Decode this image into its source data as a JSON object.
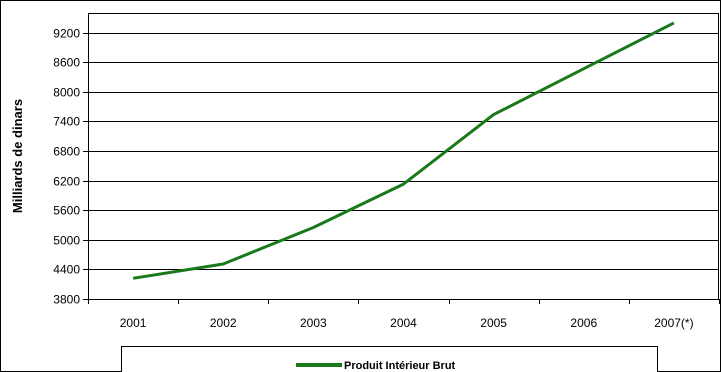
{
  "chart_data": {
    "type": "line",
    "ylabel": "Milliards de dinars",
    "categories": [
      "2001",
      "2002",
      "2003",
      "2004",
      "2005",
      "2006",
      "2007(*)"
    ],
    "series": [
      {
        "name": "Produit Intérieur Brut",
        "color": "#1a7a1a",
        "values": [
          4220,
          4510,
          5250,
          6130,
          7540,
          8470,
          9400
        ]
      }
    ],
    "yticks": [
      3800,
      4400,
      5000,
      5600,
      6200,
      6800,
      7400,
      8000,
      8600,
      9200
    ],
    "ylim": [
      3800,
      9600
    ],
    "grid": true,
    "legend_position": "bottom"
  }
}
